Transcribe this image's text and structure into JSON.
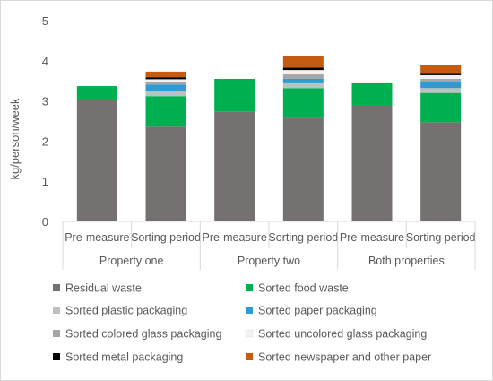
{
  "chart_data": {
    "type": "bar",
    "stacked": true,
    "ylabel": "kg/person/week",
    "xlabel": "",
    "ylim": [
      0,
      5
    ],
    "yticks": [
      0,
      1,
      2,
      3,
      4,
      5
    ],
    "grid": false,
    "legend_position": "bottom",
    "categories": [
      "Pre-measure",
      "Sorting period",
      "Pre-measure",
      "Sorting period",
      "Pre-measure",
      "Sorting period"
    ],
    "groups": [
      {
        "label": "Property one",
        "span": [
          0,
          1
        ]
      },
      {
        "label": "Property two",
        "span": [
          2,
          3
        ]
      },
      {
        "label": "Both properties",
        "span": [
          4,
          5
        ]
      }
    ],
    "series": [
      {
        "name": "Residual waste",
        "color": "#767171",
        "values": [
          3.02,
          2.36,
          2.73,
          2.58,
          2.89,
          2.47
        ]
      },
      {
        "name": "Sorted food waste",
        "color": "#00b050",
        "values": [
          0.35,
          0.76,
          0.82,
          0.74,
          0.55,
          0.73
        ]
      },
      {
        "name": "Sorted plastic packaging",
        "color": "#bfbfbf",
        "values": [
          0,
          0.12,
          0,
          0.12,
          0,
          0.12
        ]
      },
      {
        "name": "Sorted paper packaging",
        "color": "#2e9bd6",
        "values": [
          0,
          0.17,
          0,
          0.11,
          0,
          0.14
        ]
      },
      {
        "name": "Sorted colored glass packaging",
        "color": "#a6a6a6",
        "values": [
          0,
          0.07,
          0,
          0.11,
          0,
          0.09
        ]
      },
      {
        "name": "Sorted  uncolored glass packaging",
        "color": "#f2f2f2",
        "values": [
          0,
          0.06,
          0,
          0.11,
          0,
          0.09
        ]
      },
      {
        "name": "Sorted metal packaging",
        "color": "#000000",
        "values": [
          0,
          0.05,
          0,
          0.06,
          0,
          0.06
        ]
      },
      {
        "name": "Sorted newspaper and other paper",
        "color": "#c55a11",
        "values": [
          0,
          0.14,
          0,
          0.28,
          0,
          0.2
        ]
      }
    ]
  }
}
